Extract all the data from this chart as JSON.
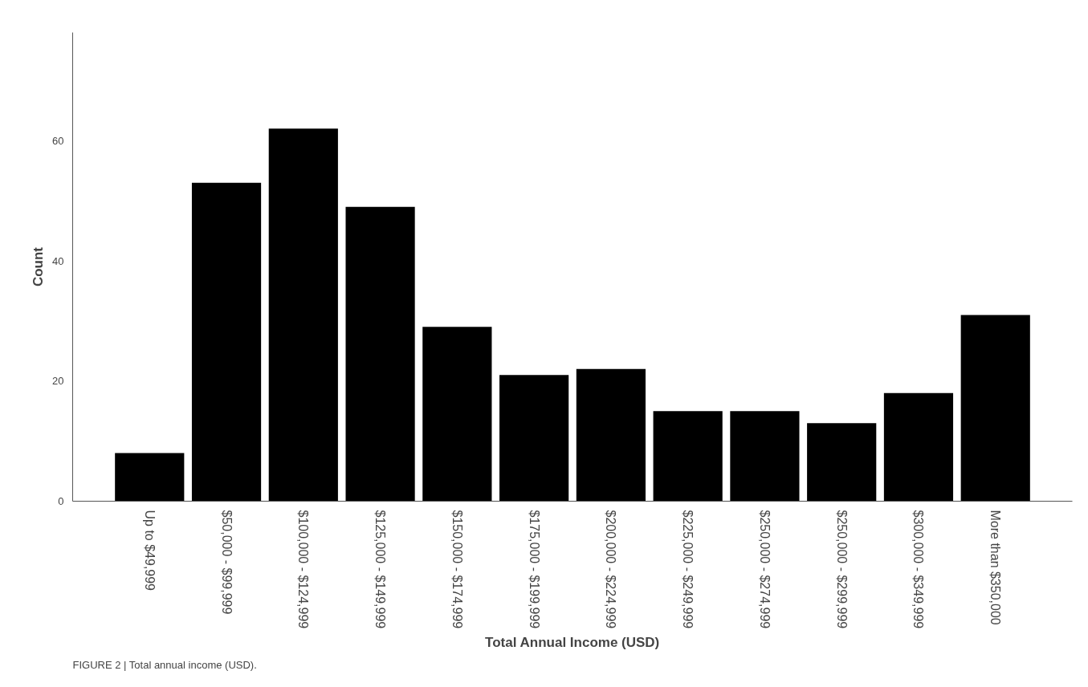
{
  "chart_data": {
    "type": "bar",
    "xlabel": "Total Annual Income (USD)",
    "ylabel": "Count",
    "categories": [
      "Up to $49,999",
      "$50,000 - $99,999",
      "$100,000 - $124,999",
      "$125,000 - $149,999",
      "$150,000 - $174,999",
      "$175,000 - $199,999",
      "$200,000 - $224,999",
      "$225,000 - $249,999",
      "$250,000 - $274,999",
      "$250,000 - $299,999",
      "$300,000 - $349,999",
      "More than $350,000"
    ],
    "values": [
      8,
      53,
      62,
      49,
      29,
      21,
      22,
      15,
      15,
      13,
      18,
      31
    ],
    "color": "#000000",
    "ylim": [
      0,
      78
    ],
    "yticks": [
      0,
      20,
      40,
      60
    ],
    "grid": false,
    "annotations": [
      "FIGURE 2 | Total annual income (USD)."
    ]
  }
}
